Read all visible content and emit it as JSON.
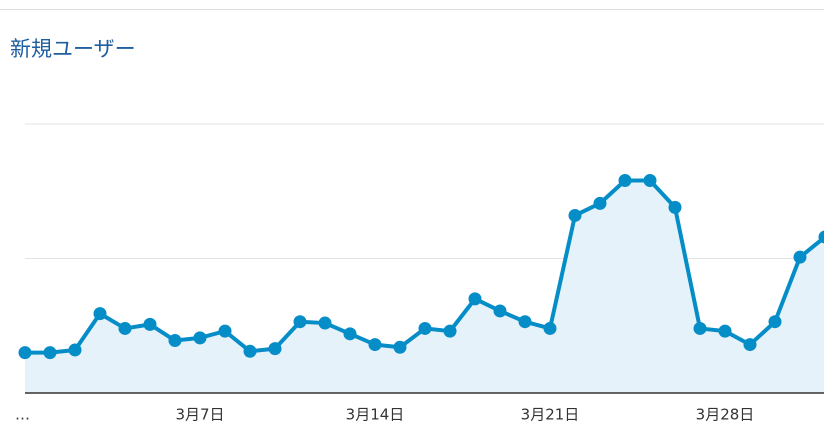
{
  "chart_data": {
    "type": "line",
    "title": "新規ユーザー",
    "categories": [
      "…",
      null,
      null,
      null,
      null,
      null,
      null,
      "3月7日",
      null,
      null,
      null,
      null,
      null,
      null,
      "3月14日",
      null,
      null,
      null,
      null,
      null,
      null,
      "3月21日",
      null,
      null,
      null,
      null,
      null,
      null,
      "3月28日",
      null,
      null,
      null,
      null
    ],
    "series": [
      {
        "name": "新規ユーザー",
        "color": "#058dc7",
        "values": [
          30,
          30,
          32,
          59,
          48,
          51,
          39,
          41,
          46,
          31,
          33,
          53,
          52,
          44,
          36,
          34,
          48,
          46,
          70,
          61,
          53,
          48,
          132,
          141,
          158,
          158,
          138,
          48,
          46,
          36,
          53,
          101,
          116
        ]
      }
    ],
    "ylim": [
      0,
      200
    ],
    "yticks": [
      0,
      100,
      200
    ],
    "grid": true
  }
}
